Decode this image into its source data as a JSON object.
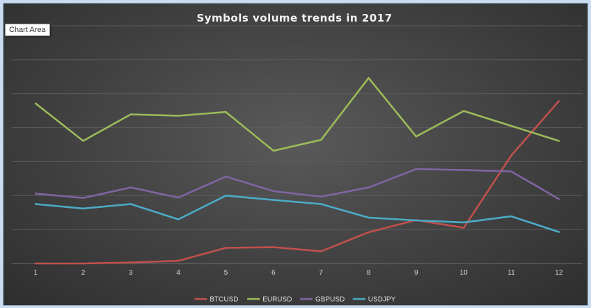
{
  "tooltip": "Chart Area",
  "chart_data": {
    "type": "line",
    "title": "Symbols volume trends in 2017",
    "xlabel": "",
    "ylabel": "",
    "categories": [
      "1",
      "2",
      "3",
      "4",
      "5",
      "6",
      "7",
      "8",
      "9",
      "10",
      "11",
      "12"
    ],
    "ylim": [
      0,
      7
    ],
    "gridlines": true,
    "grid_step": 1,
    "legend_position": "bottom",
    "series": [
      {
        "name": "BTCUSD",
        "color": "#c0504d",
        "values": [
          0.0,
          0.0,
          0.03,
          0.08,
          0.46,
          0.48,
          0.36,
          0.92,
          1.28,
          1.05,
          3.18,
          4.78
        ]
      },
      {
        "name": "EURUSD",
        "color": "#9bbb59",
        "values": [
          4.71,
          3.61,
          4.39,
          4.35,
          4.46,
          3.32,
          3.64,
          5.46,
          3.74,
          4.49,
          4.05,
          3.61
        ]
      },
      {
        "name": "GBPUSD",
        "color": "#8064a2",
        "values": [
          2.06,
          1.93,
          2.24,
          1.94,
          2.56,
          2.13,
          1.97,
          2.24,
          2.78,
          2.75,
          2.71,
          1.9
        ]
      },
      {
        "name": "USDJPY",
        "color": "#4bacc6",
        "values": [
          1.75,
          1.62,
          1.75,
          1.3,
          2.0,
          1.87,
          1.75,
          1.35,
          1.27,
          1.21,
          1.39,
          0.93
        ]
      }
    ]
  }
}
